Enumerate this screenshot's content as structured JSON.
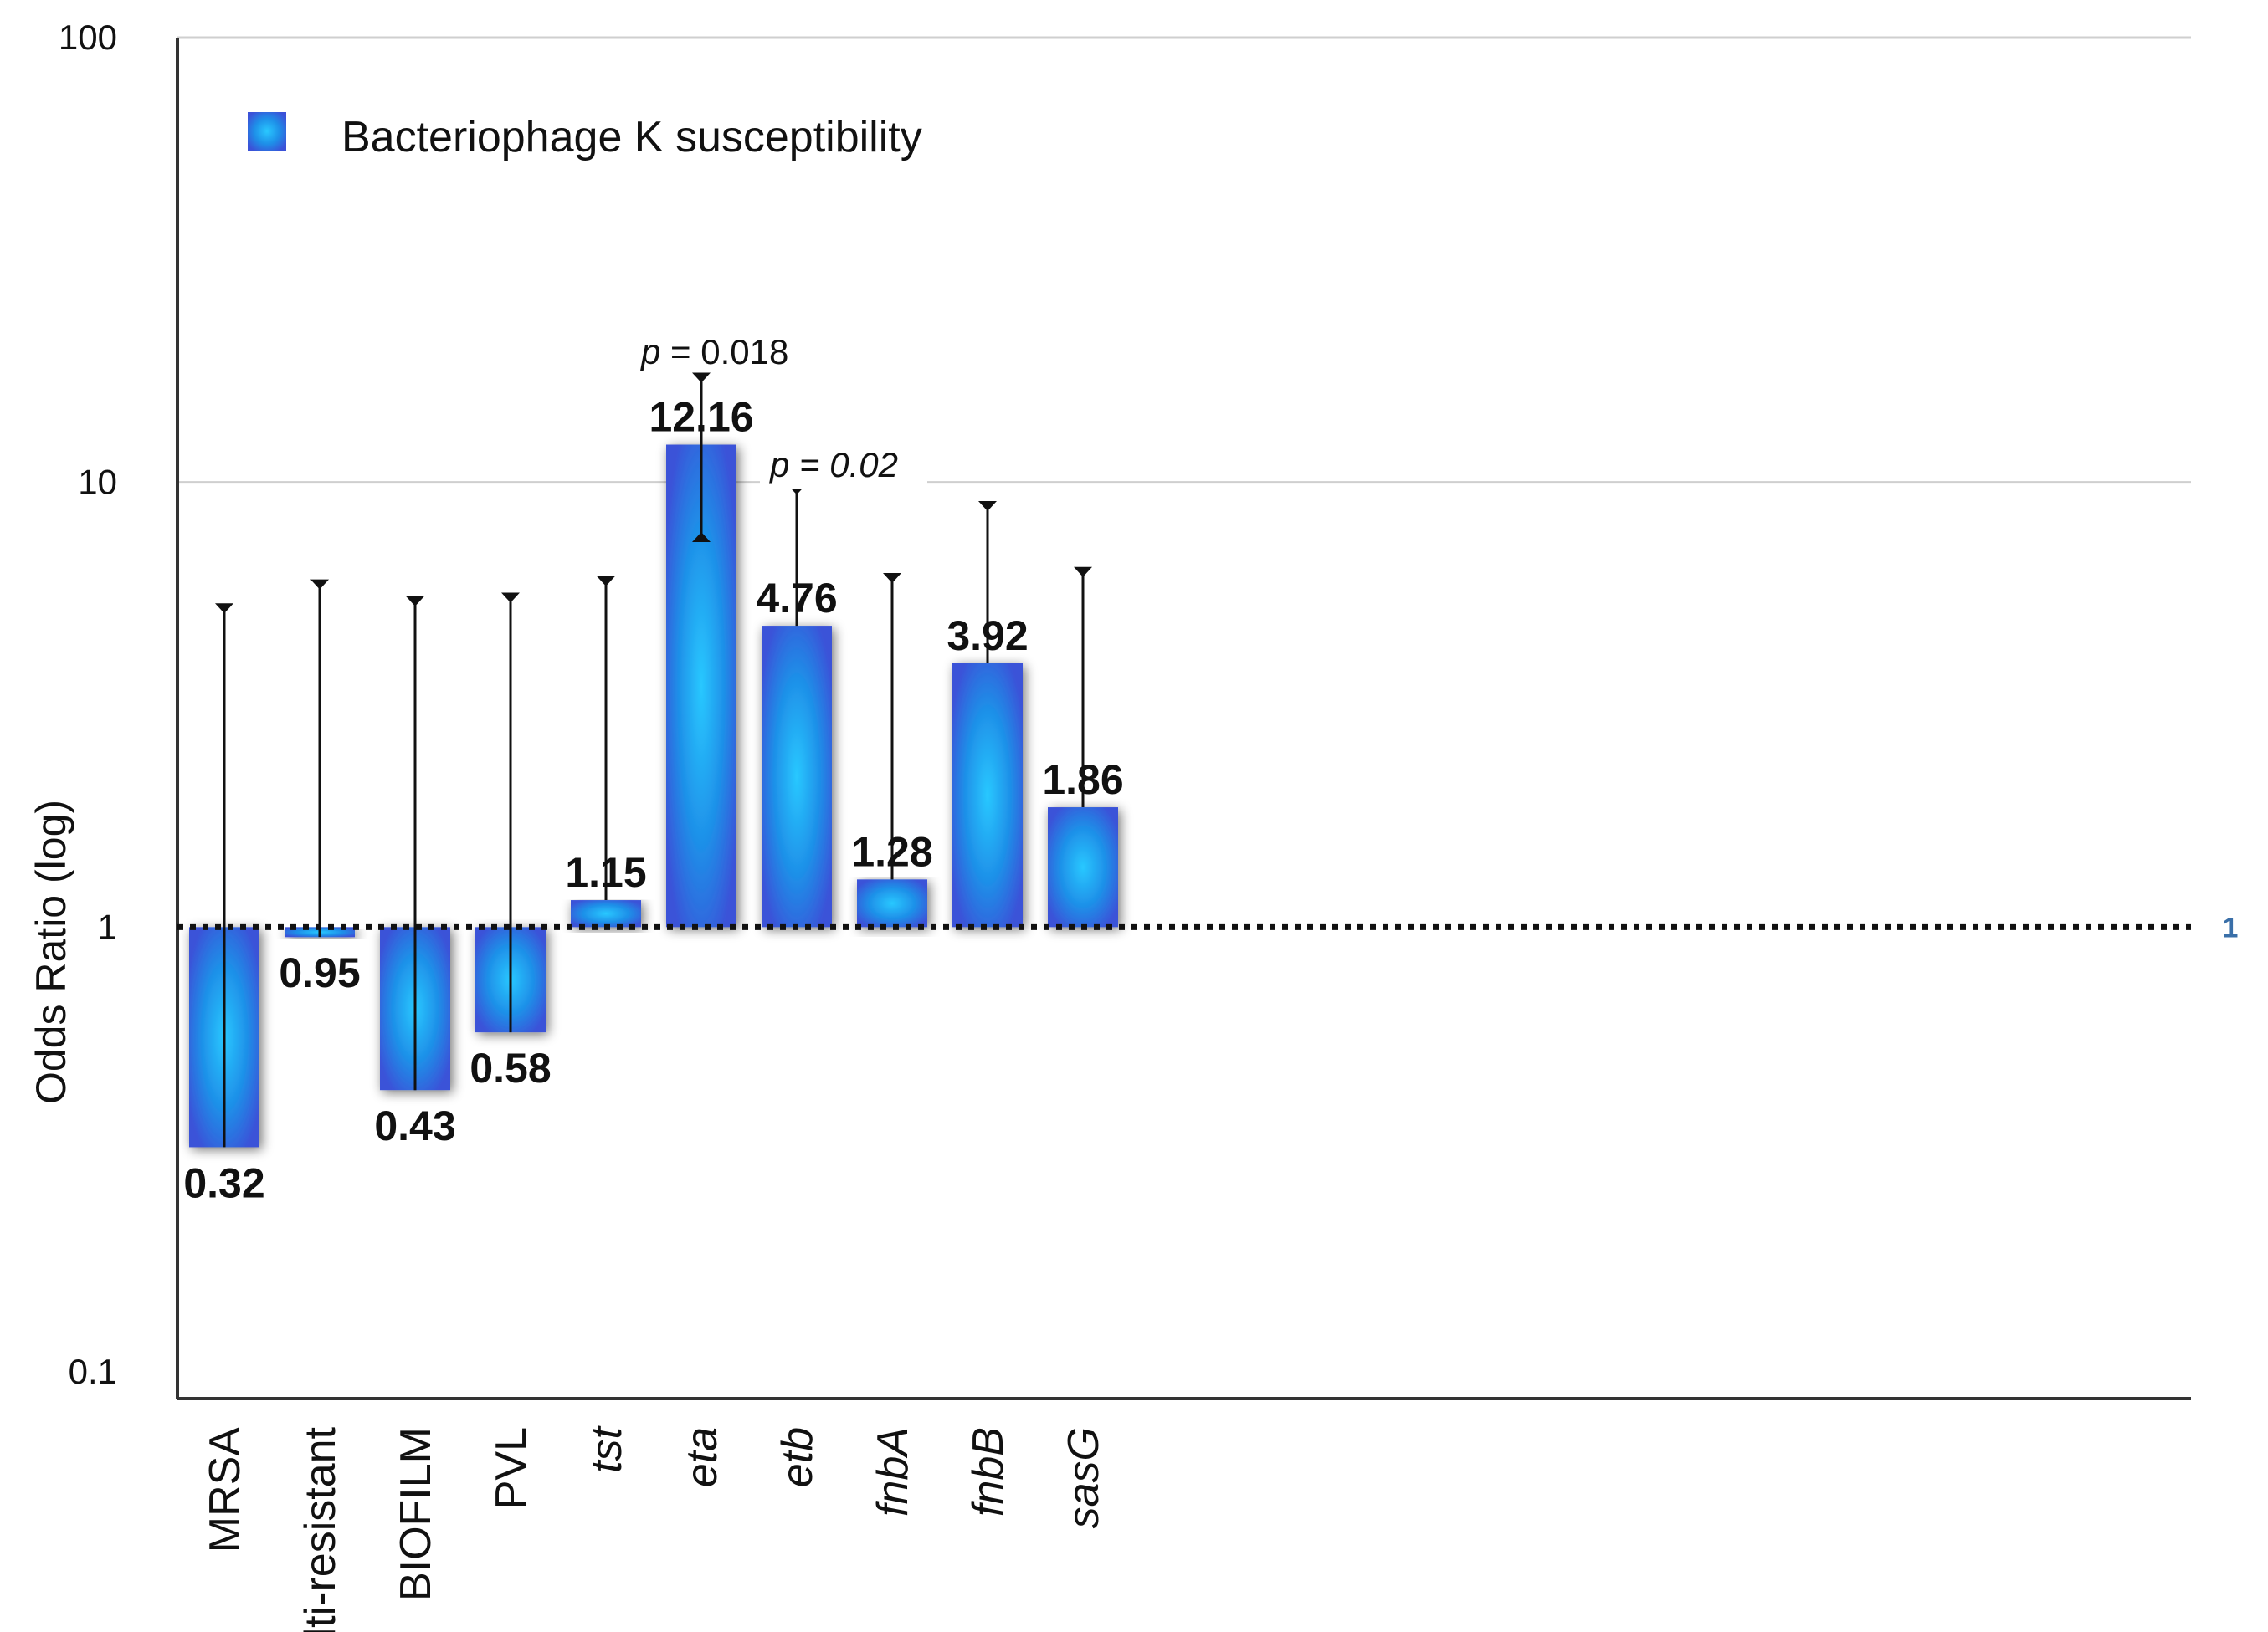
{
  "chart_data": {
    "type": "bar",
    "title": "",
    "xlabel": "",
    "ylabel": "Odds Ratio (log)",
    "yscale": "log",
    "ylim": [
      0.1,
      100
    ],
    "yticks": [
      {
        "value": 100,
        "label": "100"
      },
      {
        "value": 10,
        "label": "10"
      },
      {
        "value": 1,
        "label": "1"
      },
      {
        "value": 0.1,
        "label": "0.1"
      }
    ],
    "gridlines": [
      10,
      100
    ],
    "reference_line": {
      "value": 1,
      "label": "1"
    },
    "legend": {
      "label": "Bacteriophage K susceptibility",
      "position": "top-left"
    },
    "categories": [
      {
        "label": "MRSA",
        "italic": false
      },
      {
        "label": "Multi-resistant",
        "italic": false
      },
      {
        "label": "BIOFILM",
        "italic": false
      },
      {
        "label": "PVL",
        "italic": false
      },
      {
        "label": "tst",
        "italic": true
      },
      {
        "label": "eta",
        "italic": true
      },
      {
        "label": "etb",
        "italic": true
      },
      {
        "label": "fnbA",
        "italic": true
      },
      {
        "label": "fnbB",
        "italic": true
      },
      {
        "label": "sasG",
        "italic": true
      }
    ],
    "series": [
      {
        "name": "Bacteriophage K susceptibility",
        "values": [
          0.32,
          0.95,
          0.43,
          0.58,
          1.15,
          12.16,
          4.76,
          1.28,
          3.92,
          1.86
        ],
        "value_labels": [
          "0.32",
          "0.95",
          "0.43",
          "0.58",
          "1.15",
          "12.16",
          "4.76",
          "1.28",
          "3.92",
          "1.86"
        ],
        "ci_upper": [
          5.3,
          6.0,
          5.5,
          5.6,
          6.1,
          17.5,
          9.8,
          6.2,
          9.0,
          6.4
        ],
        "ci_lower": [
          0.32,
          0.95,
          0.43,
          0.58,
          1.15,
          7.6,
          4.76,
          1.28,
          3.92,
          1.86
        ]
      }
    ],
    "annotations": [
      {
        "category": "eta",
        "prefix": "p",
        "text": " = 0.018",
        "italic_all": false
      },
      {
        "category": "etb",
        "prefix": "p",
        "text": " = 0.02",
        "italic_all": true
      }
    ],
    "colors": {
      "bar": "#1e8fe8",
      "bar_edge": "#4a4ae0",
      "axis": "#333333",
      "grid": "#cfcfcf",
      "ref_line": "#111111"
    }
  }
}
